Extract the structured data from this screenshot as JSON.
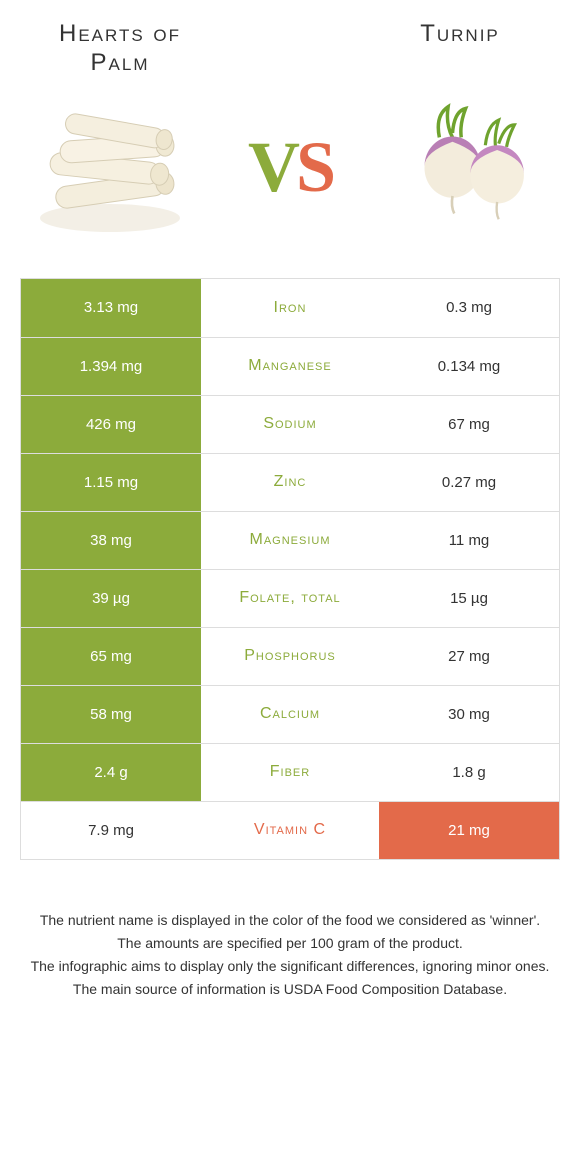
{
  "header": {
    "left_title": "Hearts of Palm",
    "right_title": "Turnip",
    "vs_v": "V",
    "vs_s": "S"
  },
  "colors": {
    "left": "#8cab3b",
    "right": "#e36a4a",
    "row_border": "#dddddd",
    "text": "#333333"
  },
  "table": {
    "rows": [
      {
        "left": "3.13 mg",
        "label": "Iron",
        "right": "0.3 mg",
        "winner": "left"
      },
      {
        "left": "1.394 mg",
        "label": "Manganese",
        "right": "0.134 mg",
        "winner": "left"
      },
      {
        "left": "426 mg",
        "label": "Sodium",
        "right": "67 mg",
        "winner": "left"
      },
      {
        "left": "1.15 mg",
        "label": "Zinc",
        "right": "0.27 mg",
        "winner": "left"
      },
      {
        "left": "38 mg",
        "label": "Magnesium",
        "right": "11 mg",
        "winner": "left"
      },
      {
        "left": "39 µg",
        "label": "Folate, total",
        "right": "15 µg",
        "winner": "left"
      },
      {
        "left": "65 mg",
        "label": "Phosphorus",
        "right": "27 mg",
        "winner": "left"
      },
      {
        "left": "58 mg",
        "label": "Calcium",
        "right": "30 mg",
        "winner": "left"
      },
      {
        "left": "2.4 g",
        "label": "Fiber",
        "right": "1.8 g",
        "winner": "left"
      },
      {
        "left": "7.9 mg",
        "label": "Vitamin C",
        "right": "21 mg",
        "winner": "right"
      }
    ]
  },
  "footer": {
    "line1": "The nutrient name is displayed in the color of the food we considered as 'winner'.",
    "line2": "The amounts are specified per 100 gram of the product.",
    "line3": "The infographic aims to display only the significant differences, ignoring minor ones.",
    "line4": "The main source of information is USDA Food Composition Database."
  }
}
